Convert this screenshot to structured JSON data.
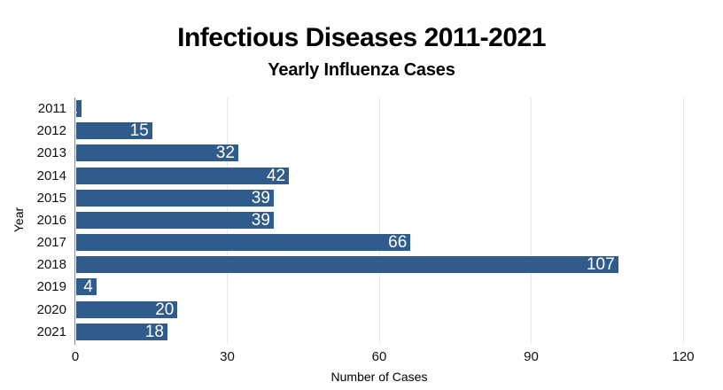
{
  "header": {
    "title": "Infectious Diseases 2011-2021",
    "subtitle": "Yearly Influenza Cases"
  },
  "chart_data": {
    "type": "bar",
    "orientation": "horizontal",
    "title": "Infectious Diseases 2011-2021",
    "subtitle": "Yearly Influenza Cases",
    "categories": [
      "2011",
      "2012",
      "2013",
      "2014",
      "2015",
      "2016",
      "2017",
      "2018",
      "2019",
      "2020",
      "2021"
    ],
    "values": [
      1,
      15,
      32,
      42,
      39,
      39,
      66,
      107,
      4,
      20,
      18
    ],
    "xlabel": "Number of Cases",
    "ylabel": "Year",
    "xlim": [
      0,
      120
    ],
    "x_ticks": [
      0,
      30,
      60,
      90,
      120
    ],
    "grid": true,
    "legend": false,
    "value_labels_inside_bars": true,
    "colors": {
      "bar": "#2f5b8d",
      "value_label": "#ffffff",
      "gridline": "#e8e8e8",
      "axis_line": "#8a8a8a",
      "tick_label": "#111111",
      "title": "#000000"
    }
  }
}
